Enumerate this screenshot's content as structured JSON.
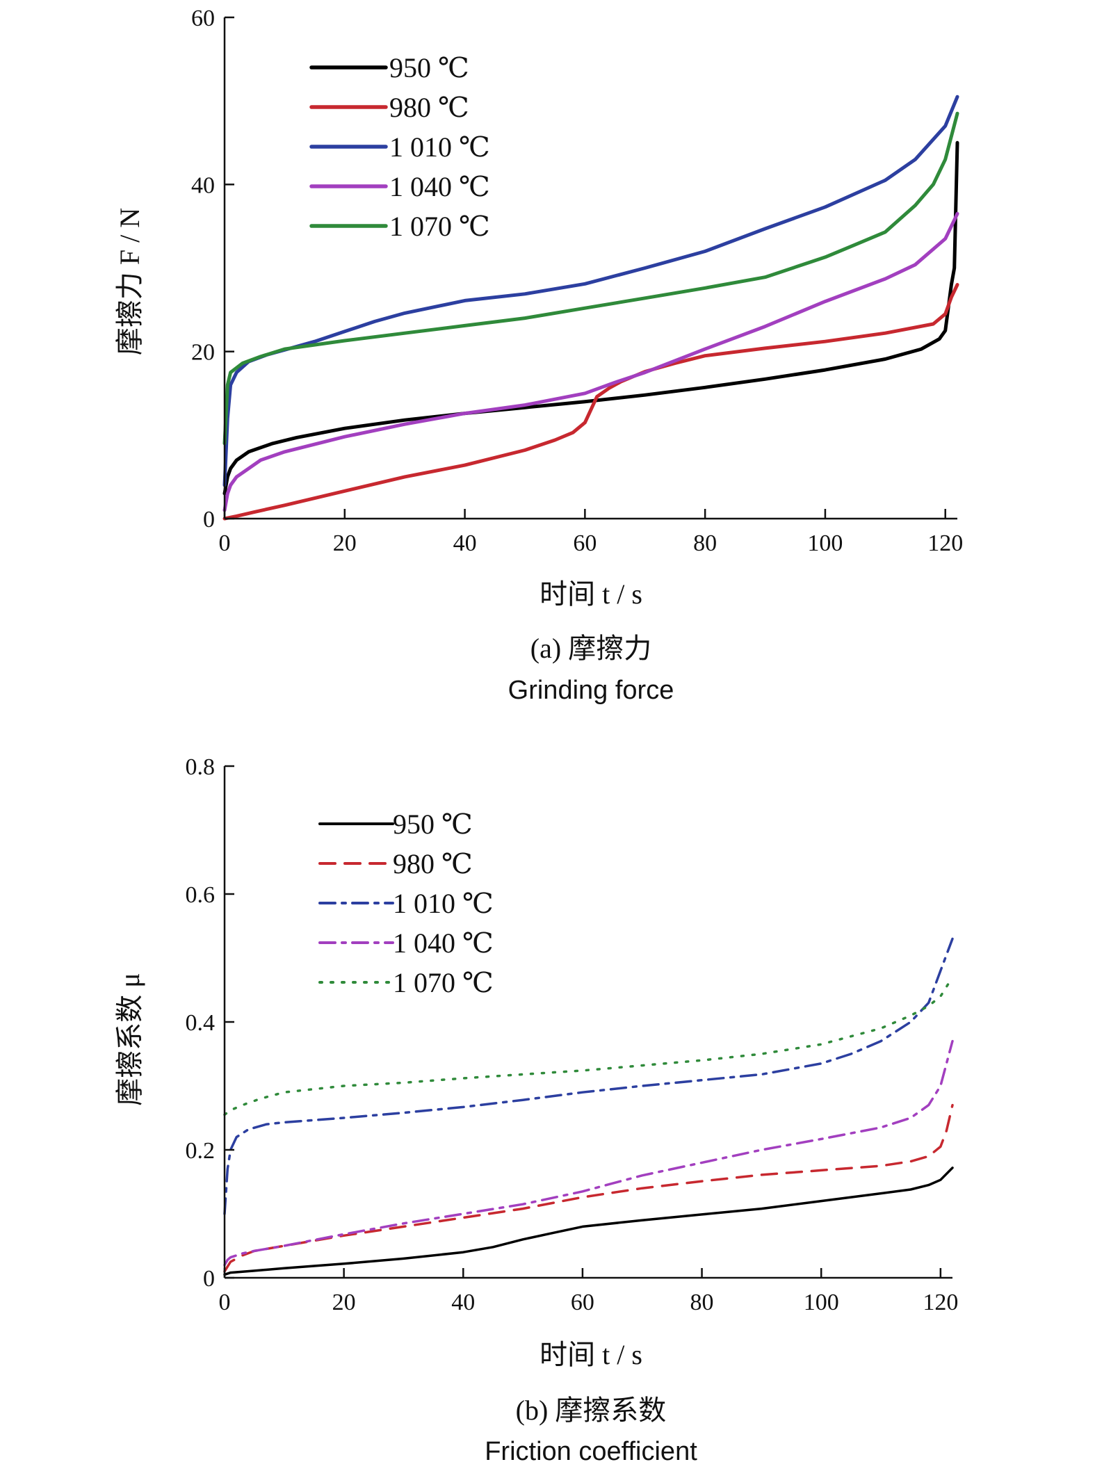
{
  "chart_data": [
    {
      "type": "line",
      "xlabel": "时间 t / s",
      "ylabel": "摩擦力 F / N",
      "xlim": [
        0,
        122
      ],
      "ylim": [
        0,
        60
      ],
      "xticks": [
        0,
        20,
        40,
        60,
        80,
        100,
        120
      ],
      "yticks": [
        0,
        20,
        40,
        60
      ],
      "grid": false,
      "legend_position": "top-left",
      "caption_cn": "(a) 摩擦力",
      "caption_en": "Grinding force",
      "series": [
        {
          "name": "950 ℃",
          "color": "#000000",
          "style": "solid",
          "x": [
            0,
            0.5,
            1,
            2,
            4,
            8,
            12,
            20,
            30,
            40,
            50,
            60,
            70,
            80,
            90,
            100,
            110,
            116,
            119,
            120,
            121,
            121.5,
            122
          ],
          "y": [
            3,
            5,
            6,
            7,
            8,
            9,
            9.7,
            10.8,
            11.8,
            12.6,
            13.3,
            14,
            14.8,
            15.7,
            16.7,
            17.8,
            19.1,
            20.3,
            21.5,
            22.5,
            28,
            30,
            45
          ]
        },
        {
          "name": "980 ℃",
          "color": "#c7282f",
          "style": "solid",
          "x": [
            0,
            2,
            5,
            10,
            20,
            30,
            40,
            50,
            55,
            58,
            60,
            62,
            64,
            66,
            70,
            75,
            80,
            90,
            100,
            110,
            118,
            120,
            121,
            122
          ],
          "y": [
            0,
            0.3,
            0.8,
            1.6,
            3.3,
            5,
            6.4,
            8.2,
            9.4,
            10.3,
            11.5,
            14.6,
            15.6,
            16.4,
            17.6,
            18.6,
            19.5,
            20.4,
            21.2,
            22.2,
            23.3,
            24.5,
            26.5,
            28
          ]
        },
        {
          "name": "1 010 ℃",
          "color": "#2c3fa0",
          "style": "solid",
          "x": [
            0,
            0.5,
            1,
            2,
            4,
            7,
            10,
            15,
            20,
            25,
            30,
            40,
            50,
            60,
            70,
            80,
            90,
            100,
            110,
            115,
            120,
            122
          ],
          "y": [
            4,
            12,
            16,
            17.5,
            18.8,
            19.6,
            20.2,
            21.2,
            22.4,
            23.6,
            24.6,
            26.1,
            26.9,
            28.1,
            30,
            32,
            34.7,
            37.3,
            40.5,
            43,
            47,
            50.5
          ]
        },
        {
          "name": "1 040 ℃",
          "color": "#a23fbf",
          "style": "solid",
          "x": [
            0,
            0.5,
            1,
            2,
            4,
            6,
            10,
            20,
            30,
            40,
            50,
            60,
            65,
            70,
            80,
            90,
            100,
            110,
            115,
            120,
            122
          ],
          "y": [
            1,
            3,
            4,
            5,
            6,
            7,
            8,
            9.8,
            11.3,
            12.6,
            13.6,
            15,
            16.3,
            17.5,
            20.3,
            23,
            26,
            28.7,
            30.4,
            33.5,
            36.5
          ]
        },
        {
          "name": "1 070 ℃",
          "color": "#2f8a3a",
          "style": "solid",
          "x": [
            0,
            0.5,
            1,
            3,
            6,
            10,
            20,
            30,
            40,
            50,
            60,
            70,
            80,
            90,
            100,
            105,
            110,
            115,
            118,
            120,
            122
          ],
          "y": [
            9,
            16,
            17.5,
            18.6,
            19.4,
            20.3,
            21.3,
            22.2,
            23.1,
            24,
            25.2,
            26.4,
            27.6,
            28.9,
            31.3,
            32.8,
            34.3,
            37.5,
            40,
            43,
            48.5
          ]
        }
      ]
    },
    {
      "type": "line",
      "xlabel": "时间 t / s",
      "ylabel": "摩擦系数 μ",
      "xlim": [
        0,
        122
      ],
      "ylim": [
        0,
        0.8
      ],
      "xticks": [
        0,
        20,
        40,
        60,
        80,
        100,
        120
      ],
      "yticks": [
        0,
        0.2,
        0.4,
        0.6,
        0.8
      ],
      "ytick_labels": [
        "0",
        "0.2",
        "0.4",
        "0.6",
        "0.8"
      ],
      "grid": false,
      "legend_position": "top-left",
      "caption_cn": "(b) 摩擦系数",
      "caption_en": "Friction coefficient",
      "series": [
        {
          "name": "950 ℃",
          "color": "#000000",
          "style": "solid",
          "x": [
            0,
            1,
            5,
            10,
            20,
            30,
            40,
            45,
            50,
            55,
            60,
            70,
            80,
            90,
            100,
            110,
            115,
            118,
            120,
            122
          ],
          "y": [
            0.005,
            0.008,
            0.011,
            0.015,
            0.022,
            0.03,
            0.04,
            0.048,
            0.06,
            0.07,
            0.08,
            0.09,
            0.099,
            0.108,
            0.12,
            0.132,
            0.138,
            0.145,
            0.153,
            0.172
          ]
        },
        {
          "name": "980 ℃",
          "color": "#c7282f",
          "style": "dashed",
          "x": [
            0,
            1,
            3,
            5,
            10,
            20,
            30,
            40,
            50,
            60,
            70,
            80,
            90,
            100,
            110,
            115,
            118,
            120,
            121,
            122
          ],
          "y": [
            0.01,
            0.025,
            0.035,
            0.042,
            0.05,
            0.066,
            0.08,
            0.094,
            0.108,
            0.126,
            0.14,
            0.151,
            0.161,
            0.168,
            0.175,
            0.182,
            0.19,
            0.205,
            0.23,
            0.27
          ]
        },
        {
          "name": "1 010 ℃",
          "color": "#2c3fa0",
          "style": "dashdot",
          "x": [
            0,
            0.5,
            1,
            2,
            4,
            7,
            10,
            20,
            30,
            40,
            50,
            60,
            70,
            80,
            90,
            100,
            105,
            110,
            115,
            118,
            120,
            122
          ],
          "y": [
            0.1,
            0.17,
            0.2,
            0.22,
            0.232,
            0.24,
            0.243,
            0.25,
            0.258,
            0.267,
            0.278,
            0.29,
            0.3,
            0.309,
            0.318,
            0.335,
            0.35,
            0.37,
            0.4,
            0.43,
            0.48,
            0.53
          ]
        },
        {
          "name": "1 040 ℃",
          "color": "#a23fbf",
          "style": "dashdot",
          "x": [
            0,
            0.5,
            1,
            3,
            5,
            10,
            20,
            30,
            40,
            50,
            60,
            70,
            80,
            90,
            100,
            110,
            115,
            118,
            120,
            122
          ],
          "y": [
            0.02,
            0.028,
            0.032,
            0.038,
            0.042,
            0.05,
            0.068,
            0.085,
            0.1,
            0.115,
            0.135,
            0.16,
            0.18,
            0.2,
            0.217,
            0.235,
            0.25,
            0.27,
            0.3,
            0.37
          ]
        },
        {
          "name": "1 070 ℃",
          "color": "#2f8a3a",
          "style": "dotted",
          "x": [
            0,
            1,
            3,
            6,
            10,
            20,
            30,
            40,
            50,
            60,
            70,
            80,
            90,
            100,
            110,
            115,
            118,
            120,
            122
          ],
          "y": [
            0.255,
            0.262,
            0.27,
            0.28,
            0.29,
            0.3,
            0.305,
            0.312,
            0.318,
            0.324,
            0.332,
            0.34,
            0.35,
            0.365,
            0.39,
            0.41,
            0.425,
            0.44,
            0.47
          ]
        }
      ]
    }
  ]
}
